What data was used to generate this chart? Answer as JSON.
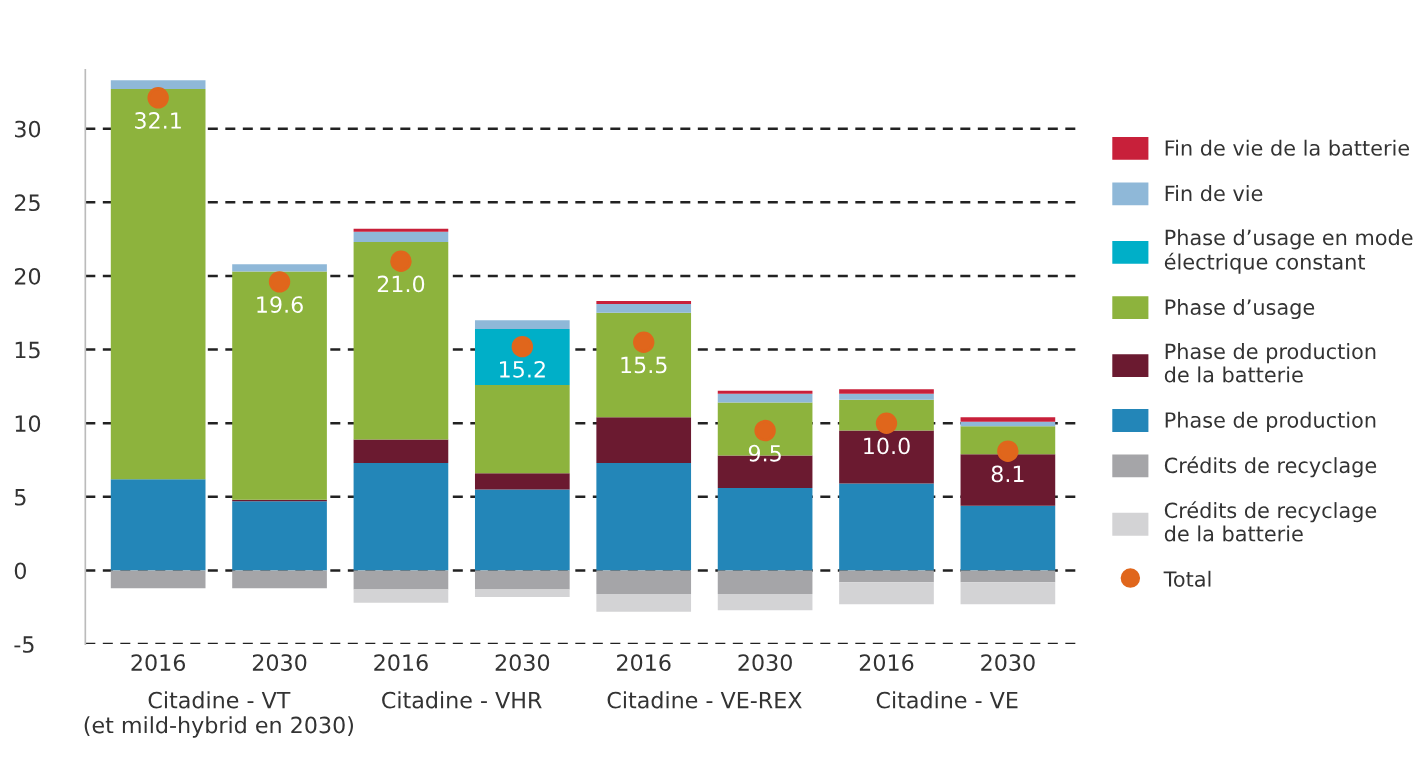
{
  "chart_data": {
    "type": "bar",
    "stacked": true,
    "categories": [
      "2016",
      "2030",
      "2016",
      "2030",
      "2016",
      "2030",
      "2016",
      "2030"
    ],
    "annotations": [
      "Citadine - VT\n(et mild-hybrid en 2030)",
      "Citadine - VHR",
      "Citadine - VE-REX",
      "Citadine - VE"
    ],
    "series": [
      {
        "name": "Phase de production",
        "color": "#2386b8",
        "values": [
          6.2,
          4.7,
          7.3,
          5.5,
          7.3,
          5.6,
          5.9,
          4.4
        ]
      },
      {
        "name": "Phase de production\nde la batterie",
        "color": "#6b1a30",
        "values": [
          0,
          0.1,
          1.6,
          1.1,
          3.1,
          2.2,
          3.6,
          3.5
        ]
      },
      {
        "name": "Phase d’usage",
        "color": "#8db33d",
        "values": [
          26.5,
          15.5,
          13.4,
          6.0,
          7.1,
          3.6,
          2.1,
          1.9
        ]
      },
      {
        "name": "Phase d’usage en mode\nélectrique constant",
        "color": "#00afc8",
        "values": [
          0,
          0,
          0,
          3.8,
          0,
          0,
          0,
          0
        ]
      },
      {
        "name": "Fin de vie",
        "color": "#8fb8d8",
        "values": [
          0.6,
          0.5,
          0.7,
          0.6,
          0.6,
          0.6,
          0.4,
          0.3
        ]
      },
      {
        "name": "Fin de vie de la batterie",
        "color": "#c8203a",
        "values": [
          0,
          0,
          0.2,
          0,
          0.2,
          0.2,
          0.3,
          0.3
        ]
      },
      {
        "name": "Crédits de recyclage",
        "color": "#a5a5a8",
        "values": [
          -1.2,
          -1.2,
          -1.3,
          -1.3,
          -1.6,
          -1.6,
          -0.8,
          -0.8
        ]
      },
      {
        "name": "Crédits de recyclage\nde la batterie",
        "color": "#d3d3d5",
        "values": [
          0,
          0,
          -0.9,
          -0.5,
          -1.2,
          -1.1,
          -1.5,
          -1.5
        ]
      },
      {
        "name": "Total",
        "type": "scatter",
        "color": "#e0661c",
        "values": [
          32.1,
          19.6,
          21.0,
          15.2,
          15.5,
          9.5,
          10.0,
          8.1
        ],
        "value_labels": [
          "32.1",
          "19.6",
          "21.0",
          "15.2",
          "15.5",
          "9.5",
          "10.0",
          "8.1"
        ]
      }
    ],
    "ylim": [
      -5,
      34
    ],
    "yticks": [
      -5,
      0,
      5,
      10,
      15,
      20,
      25,
      30
    ],
    "grid": "y",
    "legend": "right",
    "marker": "circle"
  }
}
